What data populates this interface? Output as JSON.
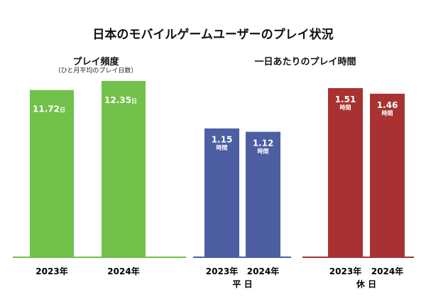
{
  "title": "日本のモバイルゲームユーザーのプレイ状況",
  "colors": {
    "green": "#72c14a",
    "blue": "#4d5ea3",
    "red": "#a83232"
  },
  "chart_data": [
    {
      "type": "bar",
      "title": "プレイ頻度",
      "subtitle": "（ひと月平均のプレイ日数）",
      "categories": [
        "2023年",
        "2024年"
      ],
      "values": [
        11.72,
        12.35
      ],
      "unit": "日",
      "value_labels": [
        "11.72",
        "12.35"
      ]
    },
    {
      "type": "bar",
      "title": "一日あたりのプレイ時間",
      "groups": [
        {
          "name": "平 日",
          "categories": [
            "2023年",
            "2024年"
          ],
          "values": [
            1.15,
            1.12
          ],
          "value_labels": [
            "1.15",
            "1.12"
          ]
        },
        {
          "name": "休 日",
          "categories": [
            "2023年",
            "2024年"
          ],
          "values": [
            1.51,
            1.46
          ],
          "value_labels": [
            "1.51",
            "1.46"
          ]
        }
      ],
      "unit": "時間"
    }
  ]
}
